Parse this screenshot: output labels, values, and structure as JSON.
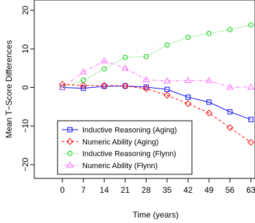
{
  "chart_data": {
    "type": "line",
    "title": "",
    "xlabel": "Time (years)",
    "ylabel": "Mean T−Score Differences",
    "x": [
      0,
      7,
      14,
      21,
      28,
      35,
      42,
      49,
      56,
      63
    ],
    "x_tick_labels": [
      "0",
      "7",
      "14",
      "21",
      "28",
      "35",
      "42",
      "49",
      "56",
      "63"
    ],
    "y_ticks": [
      -20,
      -10,
      0,
      10,
      20
    ],
    "y_tick_labels": [
      "−20",
      "−10",
      "0",
      "10",
      "20"
    ],
    "xlim": [
      0,
      63
    ],
    "ylim": [
      -20.5,
      20.5
    ],
    "grid": false,
    "legend_position": "bottom-left",
    "series": [
      {
        "name": "Inductive Reasoning (Aging)",
        "color": "#0000ff",
        "marker": "square",
        "dash": "solid",
        "values": [
          0,
          -0.2,
          0.3,
          0.4,
          0.1,
          -0.5,
          -2.5,
          -3.8,
          -6.3,
          -8.3
        ]
      },
      {
        "name": "Numeric Ability (Aging)",
        "color": "#ff0000",
        "marker": "diamond",
        "dash": "dashed",
        "values": [
          0.8,
          0.5,
          0.5,
          0.4,
          -0.3,
          -2.0,
          -4.2,
          -6.6,
          -10.4,
          -14.2
        ]
      },
      {
        "name": "Inductive Reasoning (Flynn)",
        "color": "#00cc00",
        "marker": "circle",
        "dash": "dotted",
        "values": [
          0,
          1.9,
          4.8,
          7.8,
          8.0,
          11.0,
          13.0,
          14.0,
          15.0,
          16.2
        ]
      },
      {
        "name": "Numeric Ability (Flynn)",
        "color": "#ff66ff",
        "marker": "triangle",
        "dash": "dotdash",
        "values": [
          0,
          4.0,
          6.9,
          5.0,
          2.0,
          1.7,
          1.8,
          1.8,
          0.1,
          0.1
        ]
      }
    ]
  }
}
